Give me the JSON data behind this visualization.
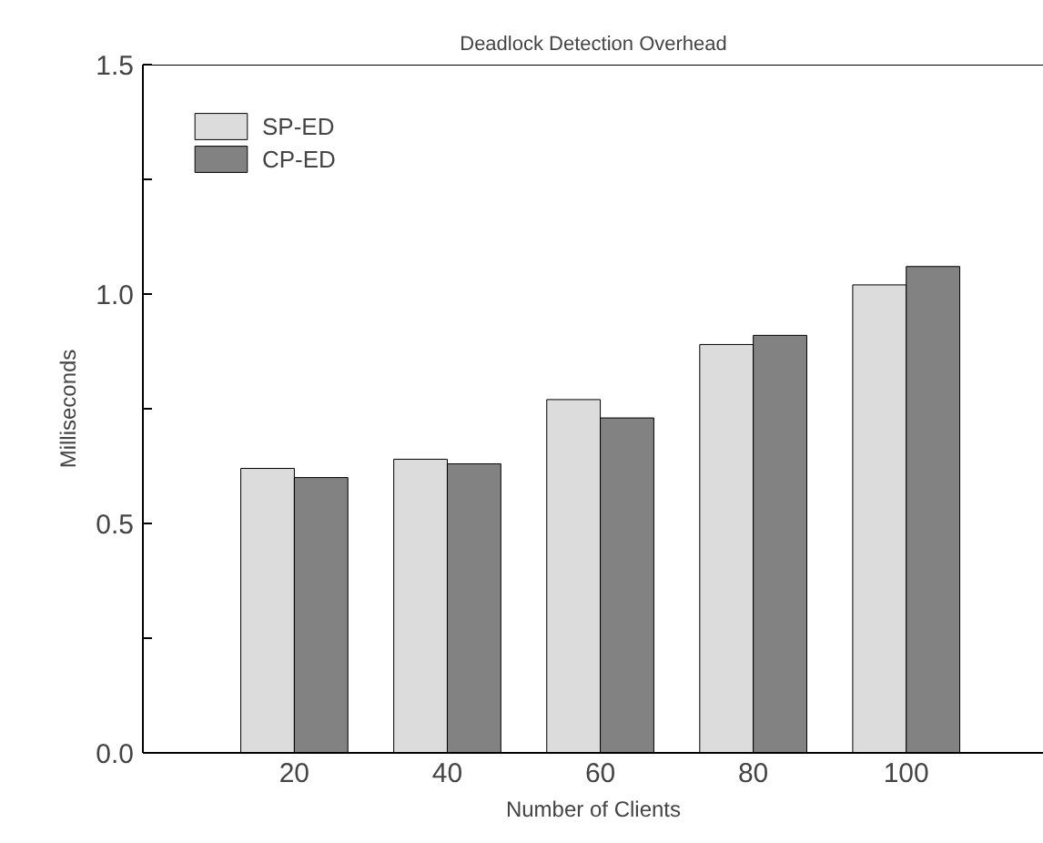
{
  "chart_data": {
    "type": "bar",
    "title": "Deadlock Detection Overhead",
    "xlabel": "Number of Clients",
    "ylabel": "Milliseconds",
    "categories": [
      "20",
      "40",
      "60",
      "80",
      "100"
    ],
    "series": [
      {
        "name": "SP-ED",
        "color": "#dcdcdc",
        "values": [
          0.62,
          0.64,
          0.77,
          0.89,
          1.02
        ]
      },
      {
        "name": "CP-ED",
        "color": "#828282",
        "values": [
          0.6,
          0.63,
          0.73,
          0.91,
          1.06
        ]
      }
    ],
    "ylim": [
      0,
      1.5
    ],
    "yticks": [
      {
        "value": 0,
        "label": "0.0"
      },
      {
        "value": 0.25,
        "label": null
      },
      0.5,
      {
        "value": 0.75,
        "label": null
      },
      {
        "value": 1,
        "label": "1.0"
      },
      {
        "value": 1.25,
        "label": null
      },
      1.5
    ],
    "grid": false,
    "legend": "top left"
  }
}
